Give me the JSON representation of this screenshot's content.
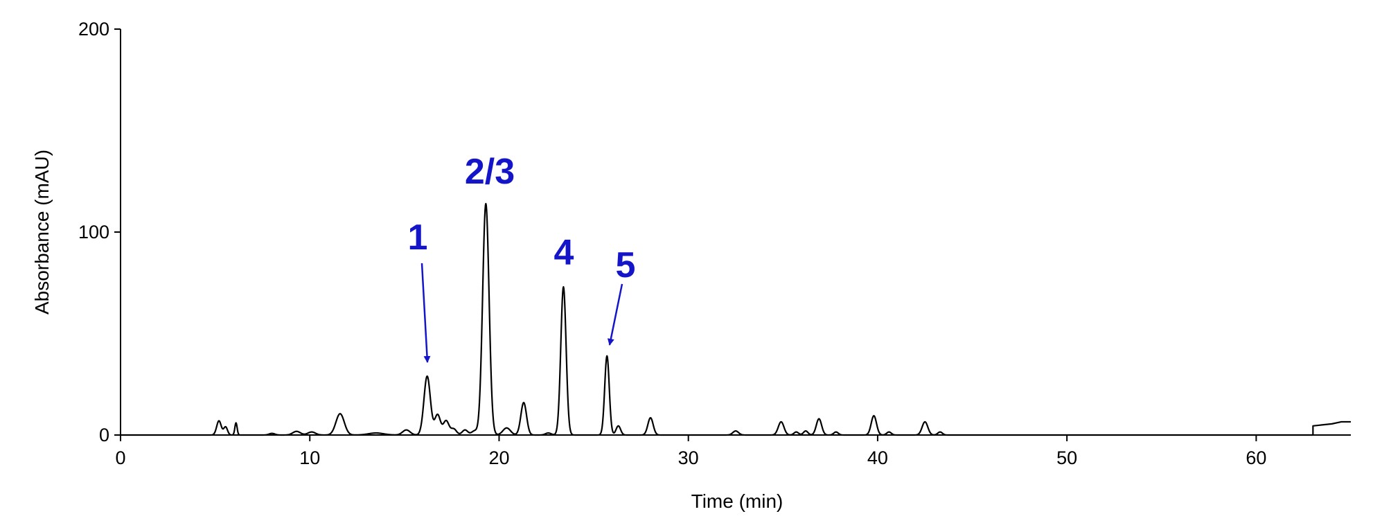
{
  "chart_data": {
    "type": "line",
    "title": "",
    "xlabel": "Time (min)",
    "ylabel": "Absorbance (mAU)",
    "xlim": [
      0,
      65
    ],
    "ylim": [
      0,
      200
    ],
    "x_ticks": [
      "0",
      "10",
      "20",
      "30",
      "40",
      "50",
      "60"
    ],
    "y_ticks": [
      "0",
      "100",
      "200"
    ],
    "grid": false,
    "colors": {
      "trace": "#000000",
      "annotation": "#1414c8"
    },
    "series": [
      {
        "name": "",
        "peaks": [
          {
            "t": 5.2,
            "h": 7,
            "w": 0.12
          },
          {
            "t": 5.55,
            "h": 4,
            "w": 0.1
          },
          {
            "t": 6.1,
            "h": 6,
            "w": 0.06
          },
          {
            "t": 8.0,
            "h": 0.8,
            "w": 0.15
          },
          {
            "t": 9.3,
            "h": 1.8,
            "w": 0.2
          },
          {
            "t": 10.1,
            "h": 1.5,
            "w": 0.2
          },
          {
            "t": 11.6,
            "h": 10.5,
            "w": 0.22
          },
          {
            "t": 13.5,
            "h": 1.0,
            "w": 0.4
          },
          {
            "t": 15.1,
            "h": 2.5,
            "w": 0.2
          },
          {
            "t": 16.2,
            "h": 29,
            "w": 0.17
          },
          {
            "t": 16.75,
            "h": 10,
            "w": 0.15
          },
          {
            "t": 17.2,
            "h": 7,
            "w": 0.15
          },
          {
            "t": 17.6,
            "h": 3,
            "w": 0.15
          },
          {
            "t": 18.2,
            "h": 2.5,
            "w": 0.15
          },
          {
            "t": 18.7,
            "h": 2.0,
            "w": 0.15
          },
          {
            "t": 19.3,
            "h": 114,
            "w": 0.17
          },
          {
            "t": 20.4,
            "h": 3.5,
            "w": 0.2
          },
          {
            "t": 21.3,
            "h": 16,
            "w": 0.15
          },
          {
            "t": 22.6,
            "h": 1.0,
            "w": 0.15
          },
          {
            "t": 23.4,
            "h": 73,
            "w": 0.14
          },
          {
            "t": 25.7,
            "h": 39,
            "w": 0.12
          },
          {
            "t": 26.3,
            "h": 4.5,
            "w": 0.12
          },
          {
            "t": 28.0,
            "h": 8.5,
            "w": 0.14
          },
          {
            "t": 32.5,
            "h": 2.0,
            "w": 0.15
          },
          {
            "t": 34.9,
            "h": 6.5,
            "w": 0.15
          },
          {
            "t": 35.7,
            "h": 1.5,
            "w": 0.12
          },
          {
            "t": 36.2,
            "h": 2.0,
            "w": 0.12
          },
          {
            "t": 36.9,
            "h": 8.0,
            "w": 0.14
          },
          {
            "t": 37.8,
            "h": 1.5,
            "w": 0.12
          },
          {
            "t": 39.8,
            "h": 9.5,
            "w": 0.14
          },
          {
            "t": 40.6,
            "h": 1.5,
            "w": 0.12
          },
          {
            "t": 42.5,
            "h": 6.5,
            "w": 0.15
          },
          {
            "t": 43.3,
            "h": 1.5,
            "w": 0.12
          }
        ],
        "late_baseline": [
          [
            63.0,
            0
          ],
          [
            63.0,
            4.5
          ],
          [
            64.0,
            5.5
          ],
          [
            64.5,
            6.5
          ],
          [
            65,
            6.5
          ]
        ]
      }
    ],
    "annotations": [
      {
        "label": "1",
        "points_to": [
          16.2,
          29
        ]
      },
      {
        "label": "2/3",
        "points_to": [
          19.3,
          114
        ]
      },
      {
        "label": "4",
        "points_to": [
          23.4,
          73
        ]
      },
      {
        "label": "5",
        "points_to": [
          25.7,
          39
        ]
      }
    ]
  }
}
